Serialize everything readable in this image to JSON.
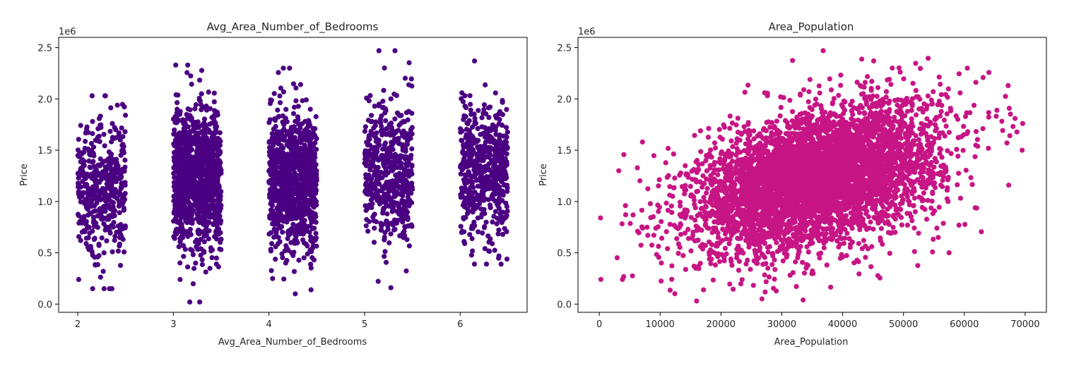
{
  "chart_data": [
    {
      "type": "scatter",
      "title": "Avg_Area_Number_of_Bedrooms",
      "xlabel": "Avg_Area_Number_of_Bedrooms",
      "ylabel": "Price",
      "y_offset_label": "1e6",
      "xlim": [
        1.8,
        6.7
      ],
      "ylim": [
        -0.08,
        2.6
      ],
      "x_ticks": [
        "2",
        "3",
        "4",
        "5",
        "6"
      ],
      "y_ticks": [
        "0.0",
        "0.5",
        "1.0",
        "1.5",
        "2.0",
        "2.5"
      ],
      "x_tick_values": [
        2,
        3,
        4,
        5,
        6
      ],
      "y_tick_values": [
        0,
        0.5,
        1.0,
        1.5,
        2.0,
        2.5
      ],
      "color": "#4b0082",
      "grid": false,
      "groups": [
        {
          "x_range": [
            2.0,
            2.5
          ],
          "count": 450,
          "y_range": [
            0.15,
            2.03
          ],
          "y_center": 1.15
        },
        {
          "x_range": [
            3.0,
            3.5
          ],
          "count": 1150,
          "y_range": [
            0.02,
            2.33
          ],
          "y_center": 1.23
        },
        {
          "x_range": [
            4.0,
            4.5
          ],
          "count": 1000,
          "y_range": [
            0.1,
            2.3
          ],
          "y_center": 1.2
        },
        {
          "x_range": [
            5.0,
            5.5
          ],
          "count": 550,
          "y_range": [
            0.16,
            2.47
          ],
          "y_center": 1.28
        },
        {
          "x_range": [
            6.0,
            6.5
          ],
          "count": 550,
          "y_range": [
            0.39,
            2.37
          ],
          "y_center": 1.28
        }
      ]
    },
    {
      "type": "scatter",
      "title": "Area_Population",
      "xlabel": "Area_Population",
      "ylabel": "Price",
      "y_offset_label": "1e6",
      "xlim": [
        -3500,
        73500
      ],
      "ylim": [
        -0.08,
        2.6
      ],
      "x_ticks": [
        "0",
        "10000",
        "20000",
        "30000",
        "40000",
        "50000",
        "60000",
        "70000"
      ],
      "y_ticks": [
        "0.0",
        "0.5",
        "1.0",
        "1.5",
        "2.0",
        "2.5"
      ],
      "x_tick_values": [
        0,
        10000,
        20000,
        30000,
        40000,
        50000,
        60000,
        70000
      ],
      "y_tick_values": [
        0,
        0.5,
        1.0,
        1.5,
        2.0,
        2.5
      ],
      "color": "#c71585",
      "grid": false,
      "cloud": {
        "count": 5000,
        "x_mean": 36000,
        "x_sd": 9900,
        "y_mean": 1.23,
        "y_sd": 0.35,
        "correlation": 0.41
      },
      "points": [
        {
          "x": 200,
          "y": 0.84
        },
        {
          "x": 3200,
          "y": 1.3
        },
        {
          "x": 3800,
          "y": 0.24
        },
        {
          "x": 4300,
          "y": 0.96
        },
        {
          "x": 6300,
          "y": 0.71
        },
        {
          "x": 7100,
          "y": 1.58
        },
        {
          "x": 9300,
          "y": 0.74
        },
        {
          "x": 10200,
          "y": 0.4
        },
        {
          "x": 16000,
          "y": 0.03
        },
        {
          "x": 33500,
          "y": 0.04
        },
        {
          "x": 36800,
          "y": 2.47
        },
        {
          "x": 60500,
          "y": 2.3
        },
        {
          "x": 67200,
          "y": 2.13
        },
        {
          "x": 69600,
          "y": 1.76
        },
        {
          "x": 69500,
          "y": 1.5
        },
        {
          "x": 67300,
          "y": 1.16
        },
        {
          "x": 57500,
          "y": 0.5
        }
      ]
    }
  ]
}
